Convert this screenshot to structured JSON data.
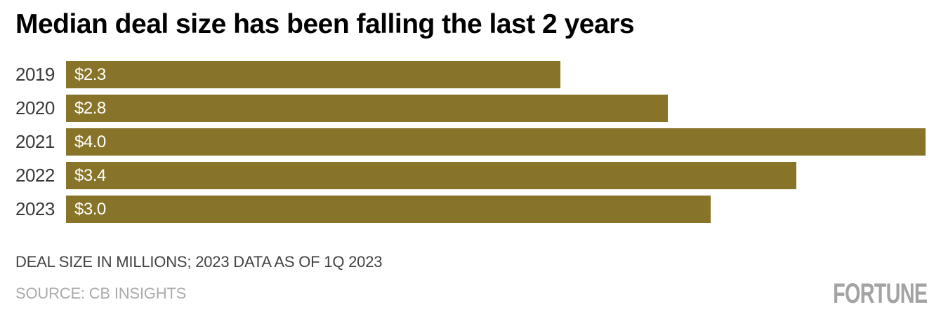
{
  "title": "Median deal size has been falling the last 2 years",
  "chart_data": {
    "type": "bar",
    "orientation": "horizontal",
    "categories": [
      "2019",
      "2020",
      "2021",
      "2022",
      "2023"
    ],
    "values": [
      2.3,
      2.8,
      4.0,
      3.4,
      3.0
    ],
    "value_labels": [
      "$2.3",
      "$2.8",
      "$4.0",
      "$3.4",
      "$3.0"
    ],
    "title": "Median deal size has been falling the last 2 years",
    "xlabel": "",
    "ylabel": "",
    "xlim": [
      0,
      4.0
    ],
    "grid": false,
    "legend": false,
    "bar_color": "#877428",
    "note": "DEAL SIZE IN MILLIONS; 2023 DATA AS OF 1Q 2023",
    "source": "SOURCE: CB INSIGHTS"
  },
  "footer": {
    "note": "DEAL SIZE IN MILLIONS; 2023 DATA AS OF 1Q 2023",
    "source": "SOURCE: CB INSIGHTS"
  },
  "branding": {
    "logo_text": "FORTUNE",
    "logo_color": "#a3a3a3"
  }
}
